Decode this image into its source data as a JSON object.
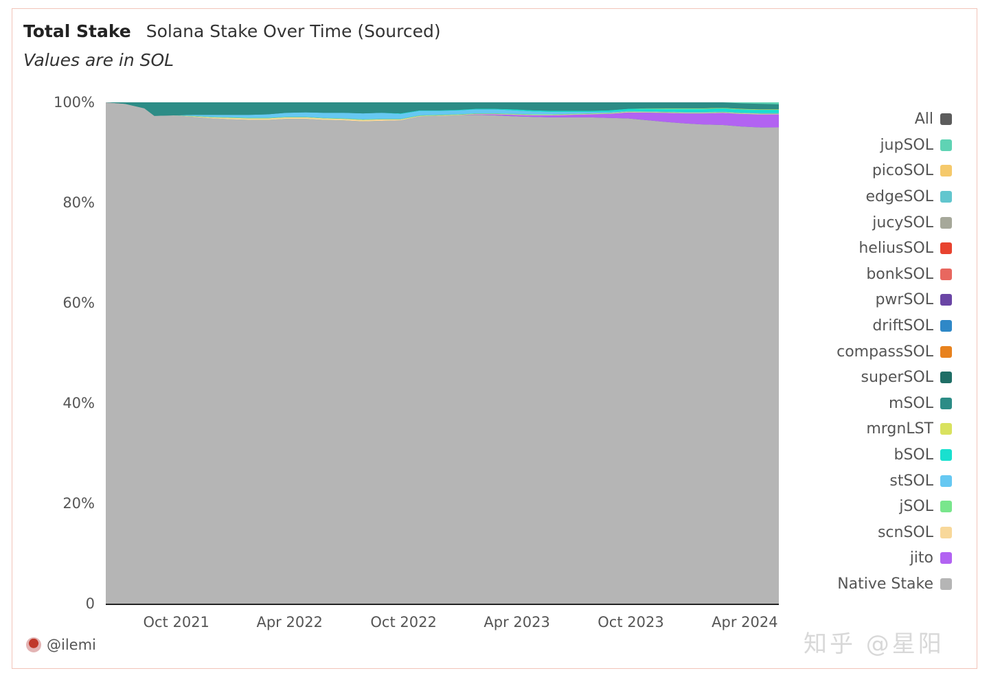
{
  "header": {
    "title": "Total Stake",
    "subtitle": "Solana Stake Over Time (Sourced)",
    "note": "Values are in SOL"
  },
  "footer": {
    "author": "@ilemi"
  },
  "watermark": {
    "text": "知乎 @星阳"
  },
  "legend": [
    {
      "label": "All",
      "color": "#5c5c5c"
    },
    {
      "label": "jupSOL",
      "color": "#5fd3b4"
    },
    {
      "label": "picoSOL",
      "color": "#f5c96b"
    },
    {
      "label": "edgeSOL",
      "color": "#62c6ce"
    },
    {
      "label": "jucySOL",
      "color": "#a6a89a"
    },
    {
      "label": "heliusSOL",
      "color": "#e8432f"
    },
    {
      "label": "bonkSOL",
      "color": "#e8675f"
    },
    {
      "label": "pwrSOL",
      "color": "#6a45a5"
    },
    {
      "label": "driftSOL",
      "color": "#2f88c7"
    },
    {
      "label": "compassSOL",
      "color": "#e8821e"
    },
    {
      "label": "superSOL",
      "color": "#1f6e66"
    },
    {
      "label": "mSOL",
      "color": "#2c8c86"
    },
    {
      "label": "mrgnLST",
      "color": "#d9e25f"
    },
    {
      "label": "bSOL",
      "color": "#19e0cf"
    },
    {
      "label": "stSOL",
      "color": "#66c8f2"
    },
    {
      "label": "jSOL",
      "color": "#79e68c"
    },
    {
      "label": "scnSOL",
      "color": "#f8d89a"
    },
    {
      "label": "jito",
      "color": "#b263f2"
    },
    {
      "label": "Native Stake",
      "color": "#b5b5b5"
    }
  ],
  "chart_data": {
    "type": "area",
    "stacking": "percent",
    "title": "Solana Stake Over Time (Sourced)",
    "y_tick_labels": [
      "0",
      "20%",
      "40%",
      "60%",
      "80%",
      "100%"
    ],
    "x_tick_labels": [
      "Oct 2021",
      "Apr 2022",
      "Oct 2022",
      "Apr 2023",
      "Oct 2023",
      "Apr 2024"
    ],
    "ylim": [
      0,
      100
    ],
    "xlim": [
      "2021-07-15",
      "2024-06-30"
    ],
    "x_ticks": [
      "2021-10-01",
      "2022-04-01",
      "2022-10-01",
      "2023-04-01",
      "2023-10-01",
      "2024-04-01"
    ],
    "grid": false,
    "legend_position": "right",
    "x": [
      "2021-07-15",
      "2021-08-15",
      "2021-09-15",
      "2021-10-01",
      "2021-11-01",
      "2021-12-01",
      "2022-01-01",
      "2022-02-01",
      "2022-03-01",
      "2022-04-01",
      "2022-05-01",
      "2022-06-01",
      "2022-07-01",
      "2022-08-01",
      "2022-09-01",
      "2022-10-01",
      "2022-11-01",
      "2022-12-01",
      "2023-01-01",
      "2023-02-01",
      "2023-03-01",
      "2023-04-01",
      "2023-05-01",
      "2023-06-01",
      "2023-07-01",
      "2023-08-01",
      "2023-09-01",
      "2023-10-01",
      "2023-11-01",
      "2023-12-01",
      "2024-01-01",
      "2024-02-01",
      "2024-03-01",
      "2024-04-01",
      "2024-05-01",
      "2024-06-01",
      "2024-06-30"
    ],
    "series": [
      {
        "name": "Native Stake",
        "values": [
          100,
          99.7,
          98.8,
          97.3,
          97.4,
          97.1,
          96.8,
          96.6,
          96.5,
          96.5,
          96.7,
          96.6,
          96.4,
          96.3,
          96.1,
          96.2,
          96.3,
          97.1,
          97.2,
          97.3,
          97.4,
          97.4,
          97.2,
          97.0,
          96.9,
          96.9,
          96.9,
          96.7,
          96.3,
          96.0,
          95.6,
          95.3,
          95.1,
          94.9,
          94.8,
          94.8,
          94.9
        ]
      },
      {
        "name": "jito",
        "values": [
          0,
          0,
          0,
          0,
          0,
          0,
          0,
          0,
          0,
          0,
          0,
          0,
          0,
          0,
          0,
          0,
          0,
          0,
          0,
          0,
          0.1,
          0.2,
          0.3,
          0.3,
          0.4,
          0.5,
          0.6,
          0.8,
          1.2,
          1.5,
          1.8,
          2.0,
          2.2,
          2.4,
          2.5,
          2.6,
          2.6
        ]
      },
      {
        "name": "scnSOL",
        "values": [
          0,
          0,
          0,
          0,
          0,
          0.1,
          0.2,
          0.3,
          0.3,
          0.3,
          0.3,
          0.3,
          0.3,
          0.3,
          0.3,
          0.3,
          0.2,
          0.1,
          0.1,
          0.1,
          0.1,
          0.1,
          0.1,
          0.1,
          0.1,
          0.1,
          0.1,
          0.1,
          0.1,
          0.1,
          0.1,
          0.1,
          0.1,
          0.1,
          0.1,
          0.1,
          0.1
        ]
      },
      {
        "name": "jSOL",
        "values": [
          0,
          0,
          0,
          0,
          0,
          0.1,
          0.1,
          0.1,
          0.1,
          0.1,
          0.1,
          0.1,
          0.1,
          0.1,
          0.1,
          0.1,
          0.1,
          0.1,
          0.1,
          0.1,
          0.1,
          0.1,
          0.1,
          0.1,
          0.1,
          0.1,
          0.1,
          0.1,
          0.1,
          0.1,
          0.1,
          0.1,
          0.1,
          0.1,
          0.1,
          0.1,
          0.1
        ]
      },
      {
        "name": "stSOL",
        "values": [
          0,
          0,
          0,
          0,
          0,
          0.2,
          0.4,
          0.5,
          0.6,
          0.7,
          0.8,
          0.9,
          1.0,
          1.1,
          1.2,
          1.2,
          1.0,
          0.9,
          0.8,
          0.8,
          0.8,
          0.8,
          0.7,
          0.6,
          0.5,
          0.4,
          0.3,
          0.2,
          0.1,
          0.1,
          0.1,
          0.1,
          0.1,
          0.1,
          0.1,
          0.1,
          0.1
        ]
      },
      {
        "name": "bSOL",
        "values": [
          0,
          0,
          0,
          0,
          0,
          0,
          0,
          0,
          0,
          0,
          0,
          0,
          0,
          0,
          0,
          0,
          0.1,
          0.1,
          0.1,
          0.1,
          0.1,
          0.1,
          0.2,
          0.2,
          0.2,
          0.2,
          0.2,
          0.3,
          0.4,
          0.5,
          0.5,
          0.6,
          0.6,
          0.6,
          0.6,
          0.6,
          0.6
        ]
      },
      {
        "name": "mrgnLST",
        "values": [
          0,
          0,
          0,
          0,
          0,
          0,
          0,
          0,
          0,
          0,
          0,
          0,
          0,
          0,
          0,
          0,
          0,
          0,
          0,
          0,
          0,
          0,
          0,
          0,
          0,
          0,
          0,
          0,
          0,
          0.05,
          0.1,
          0.1,
          0.1,
          0.1,
          0.1,
          0.1,
          0.1
        ]
      },
      {
        "name": "mSOL",
        "values": [
          0,
          0.3,
          1.2,
          2.7,
          2.6,
          2.5,
          2.5,
          2.5,
          2.5,
          2.4,
          2.1,
          2.0,
          2.1,
          2.1,
          2.2,
          2.1,
          2.2,
          1.6,
          1.6,
          1.5,
          1.3,
          1.3,
          1.4,
          1.6,
          1.7,
          1.7,
          1.7,
          1.6,
          1.3,
          1.2,
          1.2,
          1.2,
          1.2,
          1.1,
          1.1,
          1.1,
          1.0
        ]
      },
      {
        "name": "superSOL",
        "values": [
          0,
          0,
          0,
          0,
          0,
          0,
          0,
          0,
          0,
          0,
          0,
          0,
          0,
          0,
          0,
          0,
          0,
          0,
          0,
          0,
          0,
          0,
          0,
          0,
          0,
          0,
          0,
          0,
          0,
          0,
          0,
          0,
          0,
          0,
          0,
          0,
          0
        ]
      },
      {
        "name": "compassSOL",
        "values": [
          0,
          0,
          0,
          0,
          0,
          0,
          0,
          0,
          0,
          0,
          0,
          0,
          0,
          0,
          0,
          0,
          0,
          0,
          0,
          0,
          0,
          0,
          0,
          0,
          0,
          0,
          0,
          0,
          0,
          0,
          0,
          0,
          0,
          0,
          0,
          0,
          0
        ]
      },
      {
        "name": "driftSOL",
        "values": [
          0,
          0,
          0,
          0,
          0,
          0,
          0,
          0,
          0,
          0,
          0,
          0,
          0,
          0,
          0,
          0,
          0,
          0,
          0,
          0,
          0,
          0,
          0,
          0,
          0,
          0,
          0,
          0,
          0,
          0,
          0,
          0,
          0,
          0,
          0,
          0,
          0
        ]
      },
      {
        "name": "pwrSOL",
        "values": [
          0,
          0,
          0,
          0,
          0,
          0,
          0,
          0,
          0,
          0,
          0,
          0,
          0,
          0,
          0,
          0,
          0,
          0,
          0,
          0,
          0,
          0,
          0,
          0,
          0,
          0,
          0,
          0,
          0,
          0,
          0,
          0,
          0,
          0,
          0,
          0,
          0
        ]
      },
      {
        "name": "bonkSOL",
        "values": [
          0,
          0,
          0,
          0,
          0,
          0,
          0,
          0,
          0,
          0,
          0,
          0,
          0,
          0,
          0,
          0,
          0,
          0,
          0,
          0,
          0,
          0,
          0,
          0,
          0,
          0,
          0,
          0,
          0,
          0,
          0,
          0,
          0,
          0,
          0,
          0,
          0
        ]
      },
      {
        "name": "heliusSOL",
        "values": [
          0,
          0,
          0,
          0,
          0,
          0,
          0,
          0,
          0,
          0,
          0,
          0,
          0,
          0,
          0,
          0,
          0,
          0,
          0,
          0,
          0,
          0,
          0,
          0,
          0,
          0,
          0,
          0,
          0,
          0,
          0,
          0,
          0,
          0,
          0,
          0,
          0
        ]
      },
      {
        "name": "jucySOL",
        "values": [
          0,
          0,
          0,
          0,
          0,
          0,
          0,
          0,
          0,
          0,
          0,
          0,
          0,
          0,
          0,
          0,
          0,
          0,
          0,
          0,
          0,
          0,
          0,
          0,
          0,
          0,
          0,
          0,
          0,
          0,
          0,
          0,
          0,
          0,
          0,
          0,
          0
        ]
      },
      {
        "name": "edgeSOL",
        "values": [
          0,
          0,
          0,
          0,
          0,
          0,
          0,
          0,
          0,
          0,
          0,
          0,
          0,
          0,
          0,
          0,
          0,
          0,
          0,
          0,
          0,
          0,
          0,
          0,
          0,
          0,
          0,
          0,
          0,
          0,
          0,
          0,
          0,
          0,
          0,
          0,
          0
        ]
      },
      {
        "name": "picoSOL",
        "values": [
          0,
          0,
          0,
          0,
          0,
          0,
          0,
          0,
          0,
          0,
          0,
          0,
          0,
          0,
          0,
          0,
          0,
          0,
          0,
          0,
          0,
          0,
          0,
          0,
          0,
          0,
          0,
          0,
          0,
          0,
          0,
          0,
          0,
          0,
          0,
          0,
          0
        ]
      },
      {
        "name": "jupSOL",
        "values": [
          0,
          0,
          0,
          0,
          0,
          0,
          0,
          0,
          0,
          0,
          0,
          0,
          0,
          0,
          0,
          0,
          0,
          0,
          0,
          0,
          0,
          0,
          0,
          0,
          0,
          0,
          0,
          0,
          0,
          0,
          0,
          0,
          0,
          0,
          0.2,
          0.3,
          0.4
        ]
      }
    ]
  }
}
